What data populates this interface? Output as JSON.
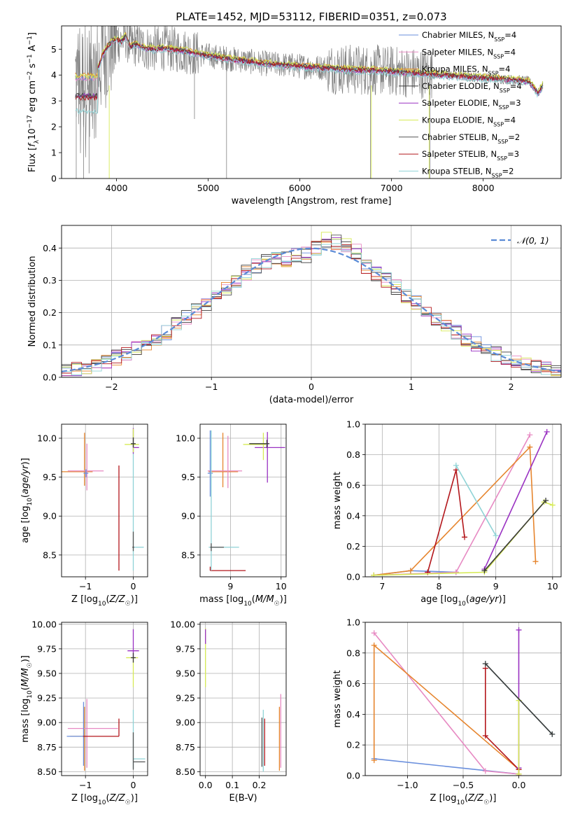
{
  "figure": {
    "title": "PLATE=1452, MJD=53112, FIBERID=0351, z=0.073"
  },
  "colors": {
    "Chabrier MILES": "#6a8fdd",
    "Salpeter MILES": "#e78ac3",
    "Kroupa MILES": "#e6852e",
    "Chabrier ELODIE": "#3a3a3a",
    "Salpeter ELODIE": "#9a32c2",
    "Kroupa ELODIE": "#d6ea55",
    "Chabrier STELIB": "#555555",
    "Salpeter STELIB": "#b3171c",
    "Kroupa STELIB": "#8fd3d6",
    "data": "#808080",
    "normal": "#5b8bd6"
  },
  "chart_data": [
    {
      "id": "spectrum",
      "type": "line",
      "title": "PLATE=1452, MJD=53112, FIBERID=0351, z=0.073",
      "xlabel": "wavelength [Angstrom, rest frame]",
      "ylabel": "Flux [f_λ 10^-17 erg cm^-2 s^-1 A^-1]",
      "xlim": [
        3400,
        8850
      ],
      "ylim": [
        0,
        5.9
      ],
      "xticks": [
        4000,
        5000,
        6000,
        7000,
        8000
      ],
      "yticks": [
        0,
        1,
        2,
        3,
        4,
        5
      ],
      "legend_position": "top-right",
      "legend": [
        {
          "name": "Chabrier MILES",
          "label": "Chabrier MILES, N",
          "sub": "SSP",
          "tail": "=4"
        },
        {
          "name": "Salpeter MILES",
          "label": "Salpeter MILES, N",
          "sub": "SSP",
          "tail": "=4"
        },
        {
          "name": "Kroupa MILES",
          "label": "Kroupa MILES, N",
          "sub": "SSP",
          "tail": "=4"
        },
        {
          "name": "Chabrier ELODIE",
          "label": "Chabrier ELODIE, N",
          "sub": "SSP",
          "tail": "=4"
        },
        {
          "name": "Salpeter ELODIE",
          "label": "Salpeter ELODIE, N",
          "sub": "SSP",
          "tail": "=3"
        },
        {
          "name": "Kroupa ELODIE",
          "label": "Kroupa ELODIE, N",
          "sub": "SSP",
          "tail": "=4"
        },
        {
          "name": "Chabrier STELIB",
          "label": "Chabrier STELIB, N",
          "sub": "SSP",
          "tail": "=2"
        },
        {
          "name": "Salpeter STELIB",
          "label": "Salpeter STELIB, N",
          "sub": "SSP",
          "tail": "=3"
        },
        {
          "name": "Kroupa STELIB",
          "label": "Kroupa STELIB, N",
          "sub": "SSP",
          "tail": "=2"
        }
      ],
      "continuum": {
        "x": [
          3550,
          3700,
          3760,
          3800,
          3850,
          3900,
          3950,
          4000,
          4050,
          4100,
          4150,
          4200,
          4300,
          4400,
          4500,
          4600,
          4700,
          4800,
          4850,
          4900,
          5000,
          5100,
          5200,
          5300,
          5400,
          5500,
          5600,
          5800,
          6000,
          6200,
          6400,
          6600,
          6800,
          7000,
          7200,
          7400,
          7600,
          7800,
          8000,
          8200,
          8400,
          8500,
          8600,
          8650
        ],
        "y": [
          3.9,
          3.85,
          3.8,
          4.3,
          4.8,
          5.1,
          5.3,
          5.4,
          5.3,
          5.5,
          5.1,
          5.2,
          5.05,
          5.0,
          5.05,
          5.0,
          4.95,
          4.9,
          4.85,
          4.8,
          4.75,
          4.7,
          4.65,
          4.6,
          4.55,
          4.5,
          4.45,
          4.4,
          4.35,
          4.3,
          4.25,
          4.2,
          4.2,
          4.15,
          4.1,
          4.05,
          4.0,
          3.95,
          3.9,
          3.85,
          3.8,
          3.75,
          3.3,
          3.6
        ]
      }
    },
    {
      "id": "residuals",
      "type": "line",
      "xlabel": "(data-model)/error",
      "ylabel": "Normed distribution",
      "xlim": [
        -2.5,
        2.5
      ],
      "ylim": [
        0,
        0.47
      ],
      "xticks": [
        -2,
        -1,
        0,
        1,
        2
      ],
      "yticks": [
        0.0,
        0.1,
        0.2,
        0.3,
        0.4
      ],
      "legend_position": "top-right",
      "legend": [
        {
          "name": "normal",
          "label": "𝒩(0, 1)"
        }
      ],
      "bins": 50
    },
    {
      "id": "age-vs-Z",
      "type": "scatter",
      "xlabel": "Z [log10(Z/Z☉)]",
      "ylabel": "age [log10(age/yr)]",
      "xlim": [
        -1.5,
        0.3
      ],
      "ylim": [
        8.22,
        10.18
      ],
      "xticks": [
        -1,
        0
      ],
      "yticks": [
        8.5,
        9.0,
        9.5,
        10.0
      ],
      "points": [
        {
          "series": "Kroupa MILES",
          "x": -1.02,
          "y": 9.57,
          "xerr": [
            0.5,
            0.17
          ],
          "yerr": [
            0.18,
            0.5
          ]
        },
        {
          "series": "Salpeter MILES",
          "x": -0.97,
          "y": 9.58,
          "xerr": [
            0.4,
            0.35
          ],
          "yerr": [
            0.25,
            0.35
          ]
        },
        {
          "series": "Chabrier MILES",
          "x": -0.99,
          "y": 9.55,
          "xerr": [
            0.05,
            0.05
          ],
          "yerr": [
            0.05,
            0.05
          ]
        },
        {
          "series": "Salpeter STELIB",
          "x": -0.3,
          "y": 8.3,
          "xerr": [
            0.0,
            0.0
          ],
          "yerr": [
            0.0,
            1.35
          ]
        },
        {
          "series": "Kroupa STELIB",
          "x": 0.0,
          "y": 8.6,
          "xerr": [
            0.0,
            0.22
          ],
          "yerr": [
            0.3,
            1.5
          ]
        },
        {
          "series": "Chabrier STELIB",
          "x": 0.0,
          "y": 8.6,
          "xerr": [
            0.02,
            0.02
          ],
          "yerr": [
            0.05,
            0.2
          ]
        },
        {
          "series": "Salpeter ELODIE",
          "x": 0.0,
          "y": 9.88,
          "xerr": [
            0.0,
            0.12
          ],
          "yerr": [
            0.08,
            0.25
          ]
        },
        {
          "series": "Kroupa ELODIE",
          "x": 0.0,
          "y": 9.92,
          "xerr": [
            0.18,
            0.12
          ],
          "yerr": [
            0.1,
            0.2
          ]
        },
        {
          "series": "Chabrier ELODIE",
          "x": 0.0,
          "y": 9.93,
          "xerr": [
            0.05,
            0.05
          ],
          "yerr": [
            0.05,
            0.08
          ]
        }
      ]
    },
    {
      "id": "age-vs-mass",
      "type": "scatter",
      "xlabel": "mass [log10(M/M☉)]",
      "ylabel": "",
      "xlim": [
        8.4,
        10.1
      ],
      "ylim": [
        8.22,
        10.18
      ],
      "xticks": [
        9,
        10
      ],
      "yticks": [
        8.5,
        9.0,
        9.5,
        10.0
      ],
      "points": [
        {
          "series": "Kroupa MILES",
          "x": 8.85,
          "y": 9.57,
          "xerr": [
            0.28,
            0.3
          ],
          "yerr": [
            0.2,
            0.5
          ]
        },
        {
          "series": "Salpeter MILES",
          "x": 8.95,
          "y": 9.58,
          "xerr": [
            0.4,
            0.28
          ],
          "yerr": [
            0.22,
            0.45
          ]
        },
        {
          "series": "Chabrier MILES",
          "x": 8.6,
          "y": 9.55,
          "xerr": [
            0.05,
            0.05
          ],
          "yerr": [
            0.3,
            0.55
          ]
        },
        {
          "series": "Salpeter STELIB",
          "x": 8.6,
          "y": 8.3,
          "xerr": [
            0.0,
            0.7
          ],
          "yerr": [
            0.0,
            0.05
          ]
        },
        {
          "series": "Kroupa STELIB",
          "x": 8.62,
          "y": 8.6,
          "xerr": [
            0.05,
            0.55
          ],
          "yerr": [
            0.3,
            1.5
          ]
        },
        {
          "series": "Chabrier STELIB",
          "x": 8.62,
          "y": 8.6,
          "xerr": [
            0.02,
            0.25
          ],
          "yerr": [
            0.05,
            0.05
          ]
        },
        {
          "series": "Salpeter ELODIE",
          "x": 9.73,
          "y": 9.88,
          "xerr": [
            0.25,
            0.35
          ],
          "yerr": [
            0.45,
            0.2
          ]
        },
        {
          "series": "Kroupa ELODIE",
          "x": 9.65,
          "y": 9.92,
          "xerr": [
            0.4,
            0.05
          ],
          "yerr": [
            0.2,
            0.15
          ]
        },
        {
          "series": "Chabrier ELODIE",
          "x": 9.72,
          "y": 9.93,
          "xerr": [
            0.35,
            0.05
          ],
          "yerr": [
            0.05,
            0.05
          ]
        }
      ]
    },
    {
      "id": "massweight-vs-age",
      "type": "line",
      "xlabel": "age [log10(age/yr)]",
      "ylabel": "mass weight",
      "xlim": [
        6.7,
        10.15
      ],
      "ylim": [
        0,
        1.0
      ],
      "xticks": [
        7,
        8,
        9,
        10
      ],
      "yticks": [
        0.0,
        0.2,
        0.4,
        0.6,
        0.8,
        1.0
      ],
      "series": [
        {
          "name": "Chabrier MILES",
          "x": [
            6.85,
            7.5,
            8.3
          ],
          "y": [
            0.01,
            0.04,
            0.03
          ]
        },
        {
          "name": "Salpeter MILES",
          "x": [
            6.85,
            8.3,
            9.6
          ],
          "y": [
            0.01,
            0.03,
            0.93
          ]
        },
        {
          "name": "Kroupa MILES",
          "x": [
            6.85,
            7.5,
            9.6,
            9.7
          ],
          "y": [
            0.01,
            0.04,
            0.85,
            0.1
          ]
        },
        {
          "name": "Salpeter STELIB",
          "x": [
            7.8,
            8.3,
            8.45
          ],
          "y": [
            0.03,
            0.7,
            0.26
          ]
        },
        {
          "name": "Kroupa STELIB",
          "x": [
            8.3,
            9.0
          ],
          "y": [
            0.73,
            0.27
          ]
        },
        {
          "name": "Salpeter ELODIE",
          "x": [
            8.8,
            9.9
          ],
          "y": [
            0.05,
            0.95
          ]
        },
        {
          "name": "Kroupa ELODIE",
          "x": [
            6.85,
            8.8,
            9.85,
            10.0
          ],
          "y": [
            0.01,
            0.03,
            0.49,
            0.47
          ]
        },
        {
          "name": "Chabrier ELODIE",
          "x": [
            8.8,
            9.88
          ],
          "y": [
            0.04,
            0.5
          ]
        }
      ]
    },
    {
      "id": "mass-vs-Z",
      "type": "scatter",
      "xlabel": "Z [log10(Z/Z☉)]",
      "ylabel": "mass [log10(M/M☉)]",
      "xlim": [
        -1.5,
        0.3
      ],
      "ylim": [
        8.46,
        10.02
      ],
      "xticks": [
        -1,
        0
      ],
      "yticks": [
        8.5,
        8.75,
        9.0,
        9.25,
        9.5,
        9.75,
        10.0
      ],
      "points": [
        {
          "series": "Kroupa MILES",
          "x": -1.02,
          "y": 8.86,
          "xerr": [
            0.3,
            0.0
          ],
          "yerr": [
            0.35,
            0.3
          ]
        },
        {
          "series": "Salpeter MILES",
          "x": -0.97,
          "y": 8.94,
          "xerr": [
            0.4,
            0.65
          ],
          "yerr": [
            0.4,
            0.3
          ]
        },
        {
          "series": "Chabrier MILES",
          "x": -1.04,
          "y": 8.86,
          "xerr": [
            0.35,
            0.05
          ],
          "yerr": [
            0.3,
            0.35
          ]
        },
        {
          "series": "Salpeter STELIB",
          "x": -0.3,
          "y": 8.86,
          "xerr": [
            0.75,
            0.0
          ],
          "yerr": [
            0.0,
            0.18
          ]
        },
        {
          "series": "Kroupa STELIB",
          "x": 0.0,
          "y": 8.63,
          "xerr": [
            0.0,
            0.25
          ],
          "yerr": [
            0.1,
            0.5
          ]
        },
        {
          "series": "Chabrier STELIB",
          "x": 0.0,
          "y": 8.6,
          "xerr": [
            0.0,
            0.25
          ],
          "yerr": [
            0.08,
            0.3
          ]
        },
        {
          "series": "Salpeter ELODIE",
          "x": 0.0,
          "y": 9.73,
          "xerr": [
            0.12,
            0.12
          ],
          "yerr": [
            0.08,
            0.22
          ]
        },
        {
          "series": "Kroupa ELODIE",
          "x": 0.0,
          "y": 9.66,
          "xerr": [
            0.15,
            0.1
          ],
          "yerr": [
            0.3,
            0.0
          ]
        },
        {
          "series": "Chabrier ELODIE",
          "x": 0.0,
          "y": 9.66,
          "xerr": [
            0.05,
            0.05
          ],
          "yerr": [
            0.05,
            0.05
          ]
        }
      ]
    },
    {
      "id": "mass-vs-ebv",
      "type": "scatter",
      "xlabel": "E(B-V)",
      "ylabel": "",
      "xlim": [
        -0.02,
        0.3
      ],
      "ylim": [
        8.46,
        10.02
      ],
      "xticks": [
        0.0,
        0.1,
        0.2
      ],
      "yticks": [
        8.5,
        8.75,
        9.0,
        9.25,
        9.5,
        9.75,
        10.0
      ],
      "points": [
        {
          "series": "Kroupa ELODIE",
          "x": 0.0,
          "y": 9.66,
          "xerr": [
            0,
            0
          ],
          "yerr": [
            0.3,
            0.3
          ]
        },
        {
          "series": "Salpeter ELODIE",
          "x": 0.0,
          "y": 9.85,
          "xerr": [
            0,
            0
          ],
          "yerr": [
            0.05,
            0.1
          ]
        },
        {
          "series": "Salpeter STELIB",
          "x": 0.22,
          "y": 8.86,
          "xerr": [
            0,
            0
          ],
          "yerr": [
            0.3,
            0.18
          ]
        },
        {
          "series": "Kroupa STELIB",
          "x": 0.215,
          "y": 8.8,
          "xerr": [
            0,
            0
          ],
          "yerr": [
            0.3,
            0.33
          ]
        },
        {
          "series": "Chabrier STELIB",
          "x": 0.21,
          "y": 8.75,
          "xerr": [
            0,
            0
          ],
          "yerr": [
            0.2,
            0.3
          ]
        },
        {
          "series": "Salpeter MILES",
          "x": 0.28,
          "y": 8.94,
          "xerr": [
            0,
            0
          ],
          "yerr": [
            0.4,
            0.35
          ]
        },
        {
          "series": "Kroupa MILES",
          "x": 0.275,
          "y": 8.86,
          "xerr": [
            0,
            0
          ],
          "yerr": [
            0.35,
            0.3
          ]
        }
      ]
    },
    {
      "id": "massweight-vs-Z",
      "type": "line",
      "xlabel": "Z [log10(Z/Z☉)]",
      "ylabel": "mass weight",
      "xlim": [
        -1.38,
        0.38
      ],
      "ylim": [
        0,
        1.0
      ],
      "xticks": [
        -1.0,
        -0.5,
        0.0
      ],
      "yticks": [
        0.0,
        0.2,
        0.4,
        0.6,
        0.8,
        1.0
      ],
      "series": [
        {
          "name": "Chabrier MILES",
          "x": [
            -1.3,
            0.0
          ],
          "y": [
            0.11,
            0.01
          ]
        },
        {
          "name": "Salpeter MILES",
          "x": [
            -1.3,
            -0.3,
            0.0
          ],
          "y": [
            0.93,
            0.03,
            0.01
          ]
        },
        {
          "name": "Kroupa MILES",
          "x": [
            -1.3,
            -1.3,
            0.0
          ],
          "y": [
            0.1,
            0.85,
            0.04
          ]
        },
        {
          "name": "Salpeter STELIB",
          "x": [
            -0.3,
            -0.3,
            0.0,
            0.0
          ],
          "y": [
            0.7,
            0.26,
            0.04,
            0.0
          ]
        },
        {
          "name": "Kroupa STELIB",
          "x": [
            -0.3,
            0.3
          ],
          "y": [
            0.73,
            0.27
          ]
        },
        {
          "name": "Salpeter ELODIE",
          "x": [
            0.0,
            0.0
          ],
          "y": [
            0.05,
            0.95
          ]
        },
        {
          "name": "Kroupa ELODIE",
          "x": [
            0.0,
            0.0
          ],
          "y": [
            0.01,
            0.49
          ]
        },
        {
          "name": "Chabrier ELODIE",
          "x": [
            -0.3,
            0.3
          ],
          "y": [
            0.73,
            0.27
          ]
        }
      ]
    }
  ]
}
